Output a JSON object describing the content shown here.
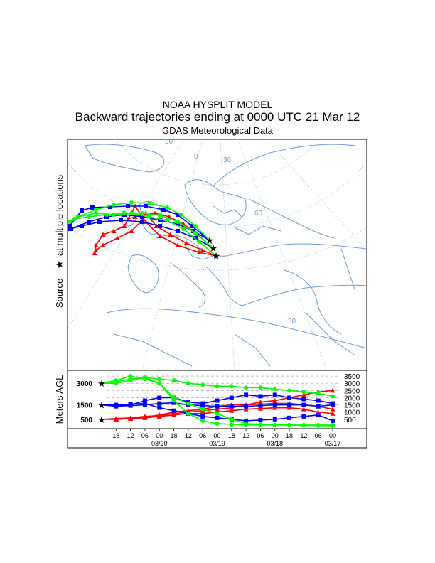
{
  "header": {
    "line1": "NOAA HYSPLIT MODEL",
    "line2": "Backward trajectories ending at 0000 UTC 21 Mar 12",
    "line3": "GDAS Meteorological Data"
  },
  "map": {
    "ylabel_part1": "Source",
    "ylabel_part2": "at multiple locations",
    "graticule_labels": [
      "30",
      "0",
      "30",
      "60",
      "30"
    ]
  },
  "colors": {
    "red": "#ff0000",
    "blue": "#0000ff",
    "green": "#00ff00",
    "map_lines": "#6b9bd1",
    "grid": "#9bbbe0"
  },
  "chart_data": {
    "type": "line",
    "ylabel": "Meters AGL",
    "start_heights": [
      3000,
      1500,
      500
    ],
    "right_axis_ticks": [
      3500,
      3000,
      2500,
      2000,
      1500,
      1000,
      500
    ],
    "hour_ticks": [
      "18",
      "12",
      "06",
      "00",
      "18",
      "12",
      "06",
      "00",
      "18",
      "12",
      "06",
      "00",
      "18",
      "12",
      "06",
      "00"
    ],
    "date_labels": [
      "03/20",
      "03/19",
      "03/18",
      "03/17"
    ],
    "ylim": [
      0,
      3800
    ],
    "hours_back": 96,
    "series": [
      {
        "color": "red",
        "marker": "triangle",
        "start": 500,
        "values": [
          500,
          550,
          600,
          700,
          750,
          900,
          1000,
          1100,
          1200,
          1300,
          1500,
          1700,
          1800,
          2000,
          2200,
          2400,
          2500
        ]
      },
      {
        "color": "red",
        "marker": "triangle",
        "start": 500,
        "values": [
          500,
          500,
          550,
          650,
          800,
          1000,
          1100,
          1200,
          1400,
          1500,
          1500,
          1550,
          1600,
          1600,
          1500,
          1400,
          1200
        ]
      },
      {
        "color": "red",
        "marker": "triangle",
        "start": 500,
        "values": [
          500,
          500,
          550,
          600,
          700,
          800,
          900,
          900,
          1000,
          1100,
          1200,
          1250,
          1300,
          1300,
          1200,
          1000,
          900
        ]
      },
      {
        "color": "blue",
        "marker": "square",
        "start": 1500,
        "values": [
          1500,
          1450,
          1500,
          1800,
          2000,
          2000,
          1700,
          1600,
          1800,
          2000,
          2200,
          2100,
          2200,
          2000,
          1900,
          1800,
          1600
        ]
      },
      {
        "color": "blue",
        "marker": "square",
        "start": 1500,
        "values": [
          1500,
          1400,
          1450,
          1500,
          1600,
          1650,
          1500,
          1450,
          1400,
          1400,
          1400,
          1450,
          1500,
          1500,
          1500,
          1400,
          1500
        ]
      },
      {
        "color": "blue",
        "marker": "square",
        "start": 1500,
        "values": [
          1500,
          1500,
          1550,
          1600,
          1300,
          1100,
          900,
          700,
          600,
          500,
          400,
          450,
          500,
          600,
          700,
          800,
          400
        ]
      },
      {
        "color": "green",
        "marker": "circle",
        "start": 3000,
        "values": [
          3000,
          3100,
          3300,
          3400,
          3300,
          3200,
          3000,
          2900,
          2800,
          2800,
          2700,
          2700,
          2600,
          2500,
          2400,
          2300,
          2100
        ]
      },
      {
        "color": "green",
        "marker": "circle",
        "start": 3000,
        "values": [
          3000,
          3200,
          3500,
          3300,
          3000,
          2000,
          1600,
          1200,
          900,
          500,
          200,
          150,
          120,
          100,
          80,
          60,
          50
        ]
      },
      {
        "color": "green",
        "marker": "circle",
        "start": 3000,
        "values": [
          3000,
          3000,
          3200,
          3400,
          3000,
          1800,
          900,
          400,
          200,
          150,
          120,
          100,
          100,
          100,
          100,
          100,
          100
        ]
      }
    ]
  }
}
